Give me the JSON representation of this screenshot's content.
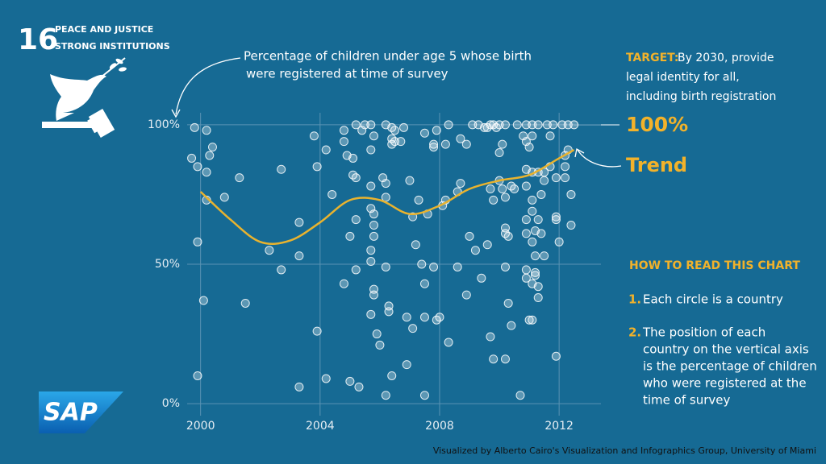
{
  "goal": {
    "number": "16",
    "lines": [
      "PEACE AND JUSTICE",
      "STRONG INSTITUTIONS"
    ]
  },
  "annotation": [
    "Percentage of children under age 5 whose birth",
    "were registered at time of survey"
  ],
  "target": {
    "label": "TARGET:",
    "lines": [
      "By 2030, provide",
      "legal identity for all,",
      "including birth registration"
    ],
    "value_label": "100%"
  },
  "how_to_read": {
    "title": "HOW TO READ THIS CHART",
    "items": [
      {
        "number": "1.",
        "lines": [
          "Each circle is a country"
        ]
      },
      {
        "number": "2.",
        "lines": [
          "The position of each",
          "country on the vertical axis",
          "is the percentage of children",
          "who were registered at the",
          "time of survey"
        ]
      }
    ]
  },
  "logo": "SAP",
  "credit": "Visualized by Alberto Cairo's Visualization and Infographics Group, University of Miami",
  "chart_data": {
    "type": "scatter",
    "xlim": [
      1999.55,
      2013.4
    ],
    "xticks": [
      2000,
      2004,
      2008,
      2012
    ],
    "ylim": [
      -4.3,
      104.3
    ],
    "yticks": [
      {
        "value": 0,
        "label": "0%"
      },
      {
        "value": 50,
        "label": "50%"
      },
      {
        "value": 100,
        "label": "100%"
      }
    ],
    "grid": true,
    "series": [
      {
        "color": "#ffffff",
        "x": [
          1999.8,
          2000.2,
          1999.7,
          1999.9,
          2000.4,
          2000.2,
          2000.3,
          2000.2,
          2000.8,
          2001.3,
          1999.9,
          2000.1,
          1999.9,
          2001.5,
          2002.3,
          2002.7,
          2002.7,
          2003.3,
          2003.3,
          2003.8,
          2003.9,
          2003.9,
          2003.3,
          2004.2,
          2004.2,
          2004.4,
          2004.8,
          2004.8,
          2004.9,
          2005.1,
          2005.2,
          2005.4,
          2005.5,
          2005.1,
          2005.2,
          2004.8,
          2005.0,
          2005.2,
          2005.2,
          2005.0,
          2005.3,
          2005.7,
          2005.8,
          2005.7,
          2005.7,
          2005.7,
          2005.8,
          2005.8,
          2005.8,
          2005.7,
          2005.7,
          2005.8,
          2005.8,
          2005.7,
          2005.9,
          2006.0,
          2006.1,
          2006.2,
          2006.2,
          2006.2,
          2006.2,
          2006.3,
          2006.3,
          2006.4,
          2006.2,
          2006.4,
          2006.5,
          2006.4,
          2006.4,
          2006.5,
          2006.7,
          2006.8,
          2006.9,
          2006.9,
          2007.0,
          2007.1,
          2007.2,
          2007.1,
          2007.3,
          2007.4,
          2007.5,
          2007.5,
          2007.5,
          2007.5,
          2007.6,
          2007.8,
          2007.8,
          2007.9,
          2008.0,
          2007.9,
          2007.8,
          2008.2,
          2008.1,
          2008.3,
          2008.2,
          2008.3,
          2008.6,
          2008.7,
          2009.1,
          2009.3,
          2009.5,
          2009.6,
          2009.7,
          2009.8,
          2009.9,
          2010.0,
          2010.2,
          2008.9,
          2009.0,
          2008.9,
          2008.7,
          2008.6,
          2009.2,
          2009.4,
          2009.7,
          2009.8,
          2009.6,
          2009.7,
          2009.8,
          2010.0,
          2010.1,
          2010.0,
          2010.1,
          2010.2,
          2010.2,
          2010.2,
          2010.3,
          2010.2,
          2010.2,
          2010.3,
          2010.4,
          2010.4,
          2010.5,
          2010.7,
          2010.6,
          2010.9,
          2011.1,
          2011.3,
          2011.6,
          2011.8,
          2012.1,
          2012.3,
          2012.5,
          2010.8,
          2010.9,
          2010.9,
          2010.9,
          2010.9,
          2010.9,
          2010.9,
          2010.9,
          2011.0,
          2011.1,
          2011.1,
          2011.1,
          2011.1,
          2011.2,
          2011.1,
          2011.2,
          2011.2,
          2011.1,
          2011.0,
          2011.1,
          2011.2,
          2011.3,
          2011.3,
          2011.3,
          2011.5,
          2011.5,
          2011.4,
          2011.3,
          2011.4,
          2011.5,
          2011.7,
          2011.7,
          2011.9,
          2011.9,
          2011.9,
          2012.0,
          2011.9,
          2012.2,
          2012.2,
          2012.4,
          2012.4,
          2012.3,
          2012.2
        ],
        "values": [
          99,
          98,
          88,
          85,
          92,
          83,
          89,
          73,
          74,
          81,
          58,
          37,
          10,
          36,
          55,
          84,
          48,
          65,
          53,
          96,
          85,
          26,
          6,
          9,
          91,
          75,
          98,
          94,
          89,
          88,
          100,
          98,
          100,
          82,
          81,
          43,
          60,
          66,
          48,
          8,
          6,
          100,
          96,
          91,
          78,
          70,
          68,
          64,
          60,
          55,
          51,
          41,
          39,
          32,
          25,
          21,
          81,
          79,
          74,
          49,
          3,
          35,
          33,
          10,
          100,
          99,
          98,
          95,
          93,
          94,
          94,
          99,
          31,
          14,
          80,
          67,
          57,
          27,
          73,
          50,
          97,
          43,
          3,
          31,
          68,
          49,
          93,
          30,
          31,
          98,
          92,
          73,
          71,
          22,
          93,
          100,
          76,
          95,
          100,
          100,
          99,
          99,
          100,
          100,
          99,
          100,
          100,
          93,
          60,
          39,
          79,
          49,
          55,
          45,
          77,
          73,
          57,
          24,
          16,
          90,
          93,
          80,
          77,
          74,
          63,
          61,
          60,
          49,
          16,
          36,
          28,
          78,
          77,
          3,
          100,
          100,
          100,
          100,
          100,
          100,
          100,
          100,
          100,
          96,
          94,
          84,
          78,
          66,
          61,
          48,
          45,
          92,
          96,
          83,
          73,
          69,
          62,
          58,
          53,
          46,
          43,
          30,
          30,
          47,
          42,
          38,
          83,
          83,
          80,
          75,
          66,
          61,
          53,
          96,
          85,
          81,
          67,
          66,
          58,
          17,
          85,
          81,
          75,
          64,
          91,
          89
        ]
      },
      {
        "name": "Trend",
        "type": "line",
        "color": "#e9b32e",
        "x": [
          2000,
          2001,
          2002,
          2003,
          2004,
          2005,
          2006,
          2007,
          2008,
          2009,
          2010,
          2011,
          2012,
          2012.5
        ],
        "values": [
          76,
          66,
          58,
          58.5,
          65,
          73,
          73,
          68,
          71,
          77,
          80,
          82,
          88,
          91
        ]
      }
    ]
  }
}
